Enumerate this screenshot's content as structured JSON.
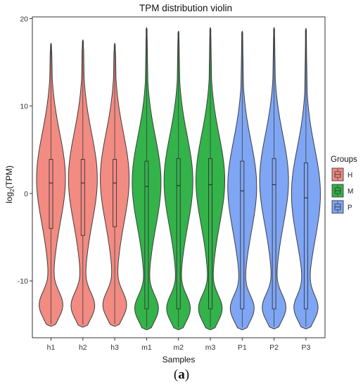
{
  "chart_data": {
    "type": "violin",
    "title": "TPM distribution violin",
    "xlabel": "Samples",
    "ylabel_prefix": "log",
    "ylabel_sub": "2",
    "ylabel_suffix": "(TPM)",
    "ylim": [
      -16.5,
      20.2
    ],
    "yticks": [
      -10,
      0,
      10,
      20
    ],
    "categories": [
      "h1",
      "h2",
      "h3",
      "m1",
      "m2",
      "m3",
      "P1",
      "P2",
      "P3"
    ],
    "groups_of_samples": [
      "H",
      "H",
      "H",
      "M",
      "M",
      "M",
      "P",
      "P",
      "P"
    ],
    "legend": {
      "title": "Groups",
      "entries": [
        {
          "label": "H",
          "color": "#f28b82"
        },
        {
          "label": "M",
          "color": "#33b34a"
        },
        {
          "label": "P",
          "color": "#7fa6f5"
        }
      ]
    },
    "grid": false,
    "legend_position": "right",
    "samples": [
      {
        "name": "h1",
        "min": -15.2,
        "max": 17.2,
        "q1": -4.0,
        "median": 1.2,
        "q3": 3.9
      },
      {
        "name": "h2",
        "min": -15.3,
        "max": 17.6,
        "q1": -4.8,
        "median": 1.2,
        "q3": 3.9
      },
      {
        "name": "h3",
        "min": -15.2,
        "max": 17.2,
        "q1": -3.8,
        "median": 1.2,
        "q3": 3.9
      },
      {
        "name": "m1",
        "min": -15.6,
        "max": 19.0,
        "q1": -13.2,
        "median": 0.8,
        "q3": 3.7
      },
      {
        "name": "m2",
        "min": -15.6,
        "max": 18.6,
        "q1": -13.2,
        "median": 0.9,
        "q3": 4.0
      },
      {
        "name": "m3",
        "min": -15.6,
        "max": 19.0,
        "q1": -13.2,
        "median": 1.0,
        "q3": 4.0
      },
      {
        "name": "P1",
        "min": -15.6,
        "max": 18.6,
        "q1": -13.2,
        "median": 0.3,
        "q3": 3.7
      },
      {
        "name": "P2",
        "min": -15.5,
        "max": 19.0,
        "q1": -13.2,
        "median": 1.0,
        "q3": 4.0
      },
      {
        "name": "P3",
        "min": -15.5,
        "max": 18.9,
        "q1": -13.2,
        "median": -0.5,
        "q3": 3.5
      }
    ]
  },
  "caption": {
    "open": "(",
    "letter": "a",
    "close": ")"
  }
}
